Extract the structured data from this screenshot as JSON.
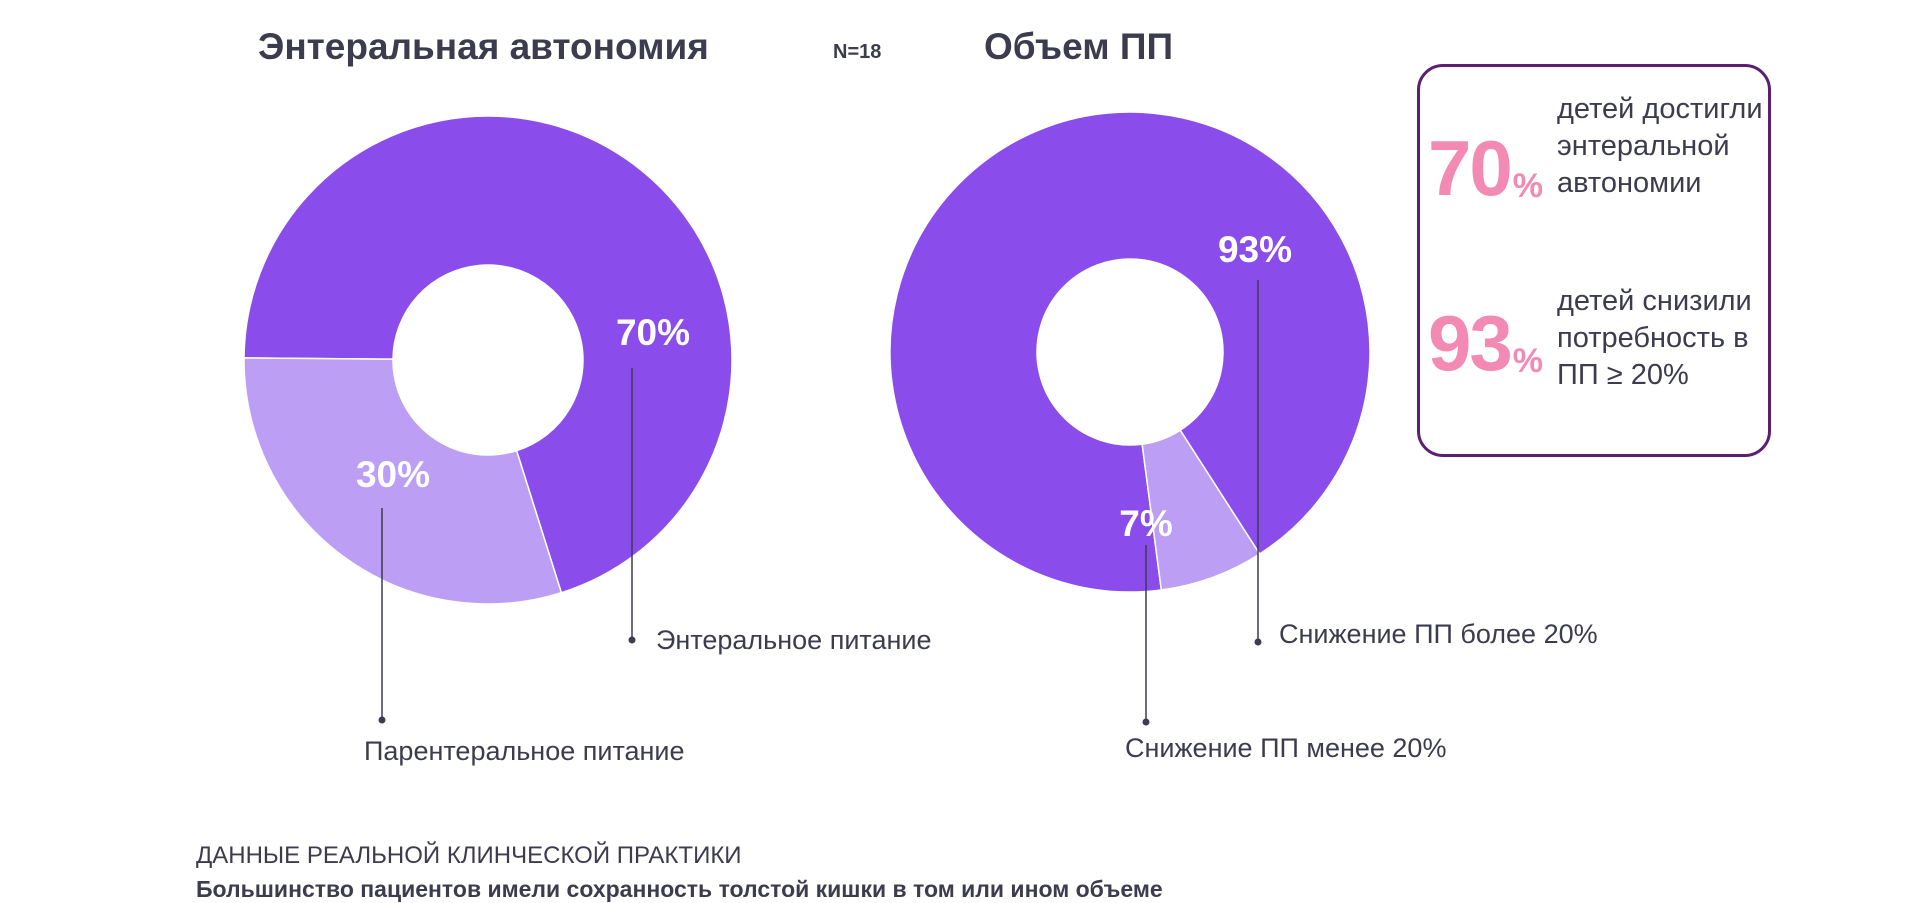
{
  "header": {
    "n_label": "N=18"
  },
  "colors": {
    "primary": "#8a4ceb",
    "secondary": "#bc9ef5",
    "accent_pink": "#f28ab4",
    "frame": "#5b1e73",
    "text": "#3c3c4e"
  },
  "chart_data": [
    {
      "type": "pie",
      "title": "Энтеральная автономия",
      "slices": [
        {
          "label": "Энтеральное питание",
          "value": 70,
          "display": "70%",
          "color": "#8a4ceb"
        },
        {
          "label": "Парентеральное питание",
          "value": 30,
          "display": "30%",
          "color": "#bc9ef5"
        }
      ]
    },
    {
      "type": "pie",
      "title": "Объем ПП",
      "slices": [
        {
          "label": "Снижение ПП более 20%",
          "value": 93,
          "display": "93%",
          "color": "#8a4ceb"
        },
        {
          "label": "Снижение ПП менее 20%",
          "value": 7,
          "display": "7%",
          "color": "#bc9ef5"
        }
      ]
    }
  ],
  "summary": {
    "stats": [
      {
        "number": "70",
        "unit": "%",
        "text": "детей достигли энтеральной автономии"
      },
      {
        "number": "93",
        "unit": "%",
        "text": "детей снизили потребность в ПП ≥ 20%"
      }
    ]
  },
  "footer": {
    "label": "ДАННЫЕ РЕАЛЬНОЙ КЛИНЧЕСКОЙ ПРАКТИКИ",
    "note": "Большинство пациентов имели сохранность толстой кишки в том или ином объеме"
  }
}
